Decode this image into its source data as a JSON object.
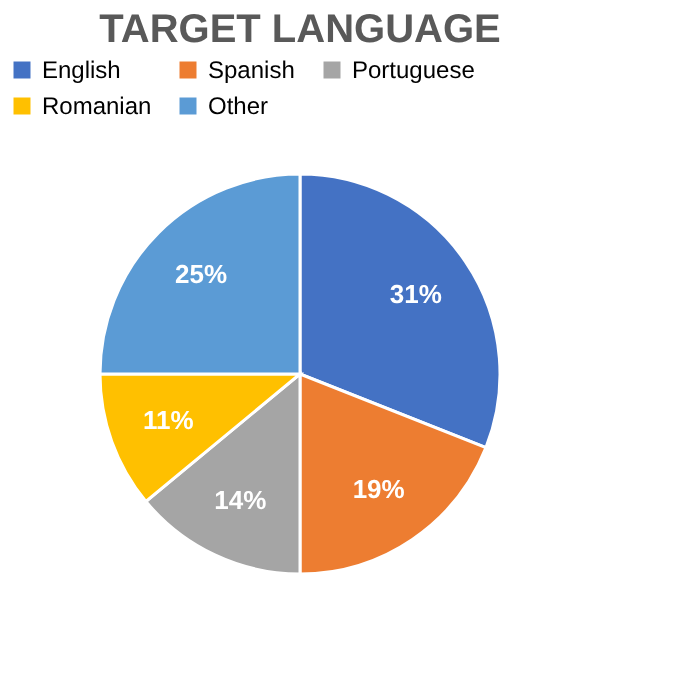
{
  "chart_data": {
    "type": "pie",
    "title": "TARGET LANGUAGE",
    "categories": [
      "English",
      "Spanish",
      "Portuguese",
      "Romanian",
      "Other"
    ],
    "values": [
      31,
      19,
      14,
      11,
      25
    ],
    "colors": [
      "#4472c4",
      "#ed7d31",
      "#a5a5a5",
      "#ffc000",
      "#5b9bd5"
    ],
    "value_labels": [
      "31%",
      "19%",
      "14%",
      "11%",
      "25%"
    ],
    "legend": "top"
  }
}
